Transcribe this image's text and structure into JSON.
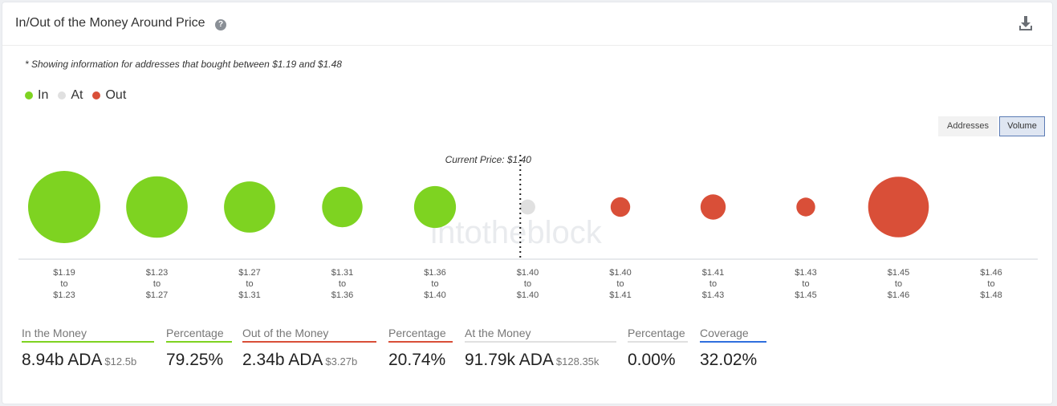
{
  "header": {
    "title": "In/Out of the Money Around Price",
    "help_icon": "question-circle-icon",
    "download_icon": "download-icon"
  },
  "note": "* Showing information for addresses that bought between $1.19 and $1.48",
  "legend": [
    {
      "label": "In",
      "color": "#7ed321"
    },
    {
      "label": "At",
      "color": "#e0e0e0"
    },
    {
      "label": "Out",
      "color": "#d94f38"
    }
  ],
  "toggle": {
    "addresses": "Addresses",
    "volume": "Volume",
    "active": "volume"
  },
  "watermark": "intotheblock",
  "chart_data": {
    "type": "bubble",
    "current_price_label": "Current Price: $1.40",
    "buckets": [
      {
        "from": "$1.19",
        "to": "$1.23",
        "status": "in",
        "size": 1.0
      },
      {
        "from": "$1.23",
        "to": "$1.27",
        "status": "in",
        "size": 0.85
      },
      {
        "from": "$1.27",
        "to": "$1.31",
        "status": "in",
        "size": 0.71
      },
      {
        "from": "$1.31",
        "to": "$1.36",
        "status": "in",
        "size": 0.56
      },
      {
        "from": "$1.36",
        "to": "$1.40",
        "status": "in",
        "size": 0.58
      },
      {
        "from": "$1.40",
        "to": "$1.40",
        "status": "at",
        "size": 0.21
      },
      {
        "from": "$1.40",
        "to": "$1.41",
        "status": "out",
        "size": 0.27
      },
      {
        "from": "$1.41",
        "to": "$1.43",
        "status": "out",
        "size": 0.35
      },
      {
        "from": "$1.43",
        "to": "$1.45",
        "status": "out",
        "size": 0.26
      },
      {
        "from": "$1.45",
        "to": "$1.46",
        "status": "out",
        "size": 0.84
      },
      {
        "from": "$1.46",
        "to": "$1.48",
        "status": "out",
        "size": 0.0
      }
    ],
    "tick_to_word": "to",
    "current_price_after_index": 4
  },
  "stats": [
    {
      "label": "In the Money",
      "value": "8.94b ADA",
      "sub": "$12.5b",
      "color": "#7ed321"
    },
    {
      "label": "Percentage",
      "value": "79.25%",
      "sub": "",
      "color": "#7ed321"
    },
    {
      "label": "Out of the Money",
      "value": "2.34b ADA",
      "sub": "$3.27b",
      "color": "#d94f38"
    },
    {
      "label": "Percentage",
      "value": "20.74%",
      "sub": "",
      "color": "#d94f38"
    },
    {
      "label": "At the Money",
      "value": "91.79k ADA",
      "sub": "$128.35k",
      "color": "#e0e0e0"
    },
    {
      "label": "Percentage",
      "value": "0.00%",
      "sub": "",
      "color": "#e0e0e0"
    },
    {
      "label": "Coverage",
      "value": "32.02%",
      "sub": "",
      "color": "#2f6fde"
    }
  ]
}
